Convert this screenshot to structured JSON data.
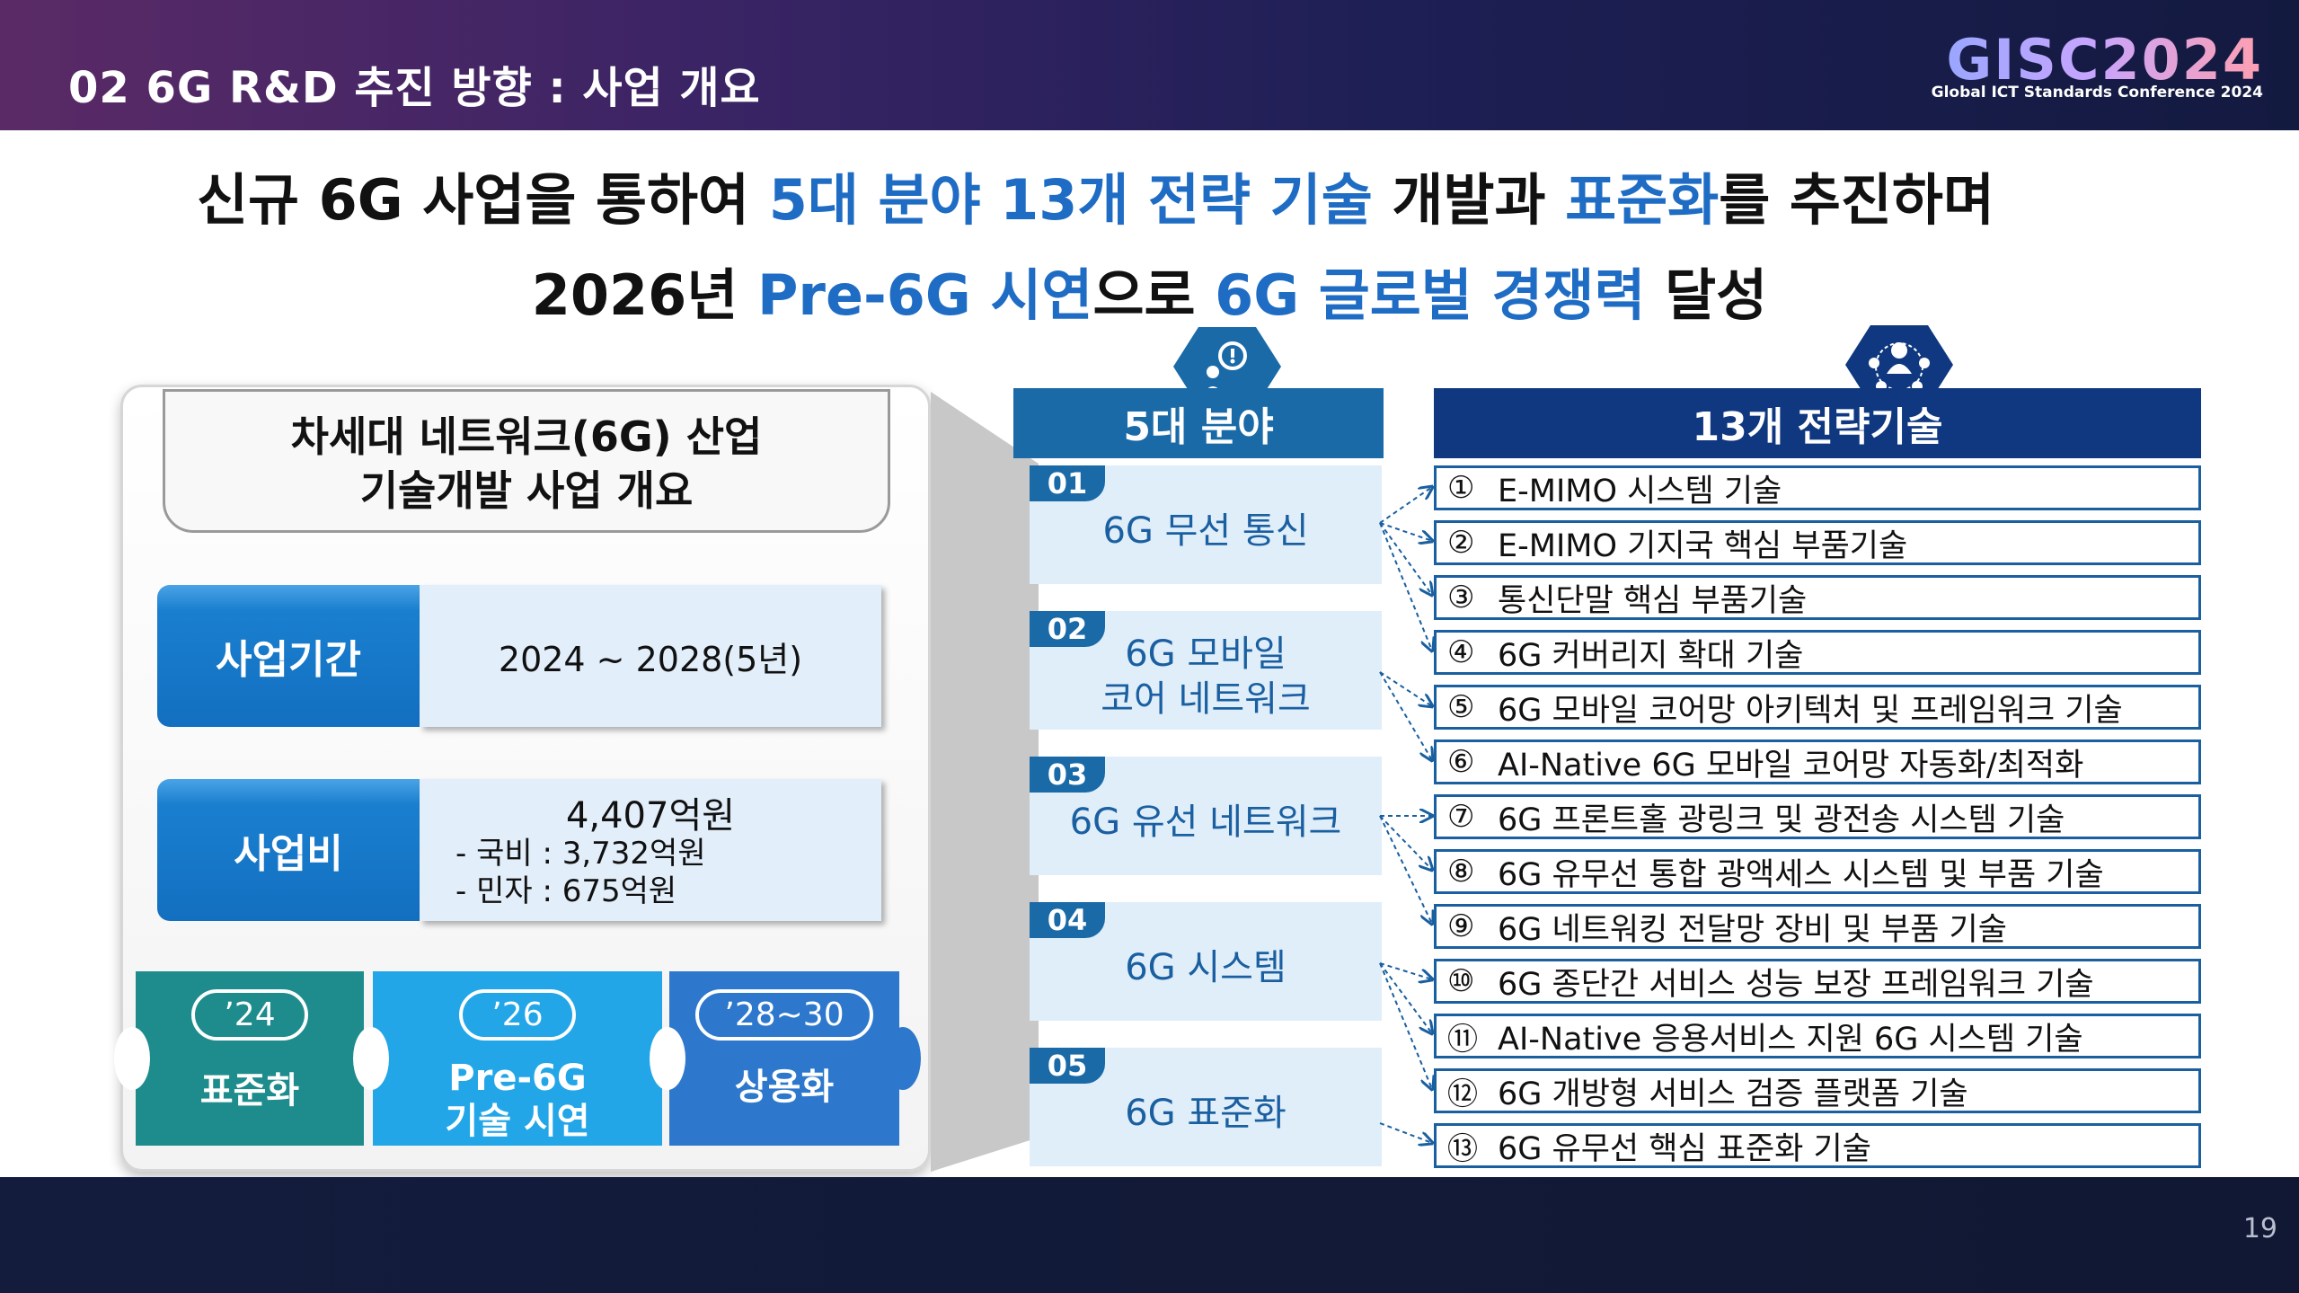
{
  "header": {
    "title": "02 6G R&D 추진 방향 : 사업 개요",
    "logo_main": "GISC2024",
    "logo_sub": "Global ICT Standards Conference 2024"
  },
  "headline": {
    "line1_a": "신규 6G 사업을 통하여 ",
    "line1_b": "5대 분야 13개 전략 기술",
    "line1_c": " 개발과 ",
    "line1_d": "표준화",
    "line1_e": "를 추진하며",
    "line2_a": "2026년 ",
    "line2_b": "Pre-6G 시연",
    "line2_c": "으로 ",
    "line2_d": "6G 글로벌 경쟁력",
    "line2_e": " 달성"
  },
  "overview": {
    "title_line1": "차세대 네트워크(6G) 산업",
    "title_line2": "기술개발 사업 개요",
    "period_label": "사업기간",
    "period_value": "2024 ~ 2028(5년)",
    "cost_label": "사업비",
    "cost_total": "4,407억원",
    "cost_national": "- 국비 : 3,732억원",
    "cost_private": "- 민자 : 675억원"
  },
  "roadmap": [
    {
      "year": "’24",
      "label_line1": "표준화",
      "label_line2": ""
    },
    {
      "year": "’26",
      "label_line1": "Pre-6G",
      "label_line2": "기술 시연"
    },
    {
      "year": "’28~30",
      "label_line1": "상용화",
      "label_line2": ""
    }
  ],
  "fields": {
    "header": "5대 분야",
    "items": [
      {
        "num": "01",
        "line1": "6G 무선 통신",
        "line2": ""
      },
      {
        "num": "02",
        "line1": "6G 모바일",
        "line2": "코어 네트워크"
      },
      {
        "num": "03",
        "line1": "6G 유선 네트워크",
        "line2": ""
      },
      {
        "num": "04",
        "line1": "6G 시스템",
        "line2": ""
      },
      {
        "num": "05",
        "line1": "6G 표준화",
        "line2": ""
      }
    ]
  },
  "techs": {
    "header": "13개 전략기술",
    "items": [
      {
        "num": "①",
        "label": "E-MIMO 시스템 기술"
      },
      {
        "num": "②",
        "label": "E-MIMO 기지국 핵심 부품기술"
      },
      {
        "num": "③",
        "label": "통신단말 핵심 부품기술"
      },
      {
        "num": "④",
        "label": "6G 커버리지 확대 기술"
      },
      {
        "num": "⑤",
        "label": "6G 모바일 코어망 아키텍처 및 프레임워크 기술"
      },
      {
        "num": "⑥",
        "label": "AI-Native 6G 모바일 코어망 자동화/최적화"
      },
      {
        "num": "⑦",
        "label": "6G 프론트홀 광링크 및 광전송 시스템 기술"
      },
      {
        "num": "⑧",
        "label": "6G 유무선 통합 광액세스 시스템 및 부품 기술"
      },
      {
        "num": "⑨",
        "label": "6G 네트워킹 전달망 장비 및 부품 기술"
      },
      {
        "num": "⑩",
        "label": "6G 종단간 서비스 성능 보장 프레임워크 기술"
      },
      {
        "num": "⑪",
        "label": "AI-Native 응용서비스 지원 6G 시스템 기술"
      },
      {
        "num": "⑫",
        "label": "6G 개방형 서비스 검증 플랫폼 기술"
      },
      {
        "num": "⑬",
        "label": "6G 유무선 핵심 표준화 기술"
      }
    ]
  },
  "icons": {
    "fields": "idea-person-icon",
    "techs": "network-people-icon"
  },
  "colors": {
    "accent_blue": "#1f6cc4",
    "field_blue": "#1a6aa8",
    "tech_navy": "#0f3880",
    "teal": "#1e8c8c",
    "sky": "#22a6e8"
  },
  "footer": {
    "page": "19"
  }
}
